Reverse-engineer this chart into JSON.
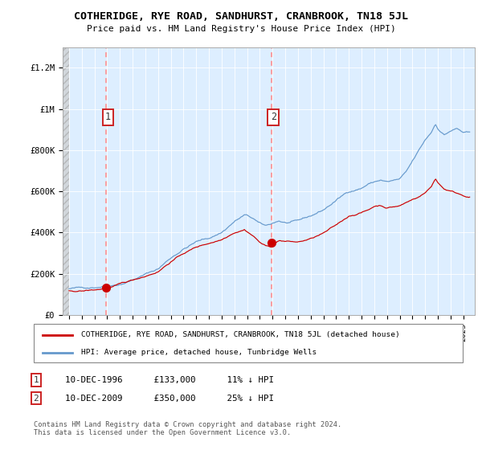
{
  "title": "COTHERIDGE, RYE ROAD, SANDHURST, CRANBROOK, TN18 5JL",
  "subtitle": "Price paid vs. HM Land Registry's House Price Index (HPI)",
  "legend_label_red": "COTHERIDGE, RYE ROAD, SANDHURST, CRANBROOK, TN18 5JL (detached house)",
  "legend_label_blue": "HPI: Average price, detached house, Tunbridge Wells",
  "annotation1_label": "1",
  "annotation1_date": "10-DEC-1996",
  "annotation1_price": "£133,000",
  "annotation1_note": "11% ↓ HPI",
  "annotation2_label": "2",
  "annotation2_date": "10-DEC-2009",
  "annotation2_price": "£350,000",
  "annotation2_note": "25% ↓ HPI",
  "copyright": "Contains HM Land Registry data © Crown copyright and database right 2024.\nThis data is licensed under the Open Government Licence v3.0.",
  "ylim": [
    0,
    1300000
  ],
  "yticks": [
    0,
    200000,
    400000,
    600000,
    800000,
    1000000,
    1200000
  ],
  "ytick_labels": [
    "£0",
    "£200K",
    "£400K",
    "£600K",
    "£800K",
    "£1M",
    "£1.2M"
  ],
  "color_red": "#cc0000",
  "color_blue": "#6699cc",
  "color_dashed": "#ff8888",
  "color_bg": "#ddeeff",
  "point1_x": 1996.92,
  "point1_y": 133000,
  "point2_x": 2009.92,
  "point2_y": 350000,
  "xlim_left": 1993.5,
  "xlim_right": 2025.9
}
